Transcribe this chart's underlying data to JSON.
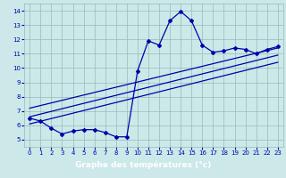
{
  "xlabel": "Graphe des températures (°c)",
  "bg_color": "#cce8e8",
  "line_color": "#0000aa",
  "grid_color": "#99bbbb",
  "x_data": [
    0,
    1,
    2,
    3,
    4,
    5,
    6,
    7,
    8,
    9,
    10,
    11,
    12,
    13,
    14,
    15,
    16,
    17,
    18,
    19,
    20,
    21,
    22,
    23
  ],
  "y_data": [
    6.5,
    6.3,
    5.8,
    5.4,
    5.6,
    5.7,
    5.7,
    5.5,
    5.2,
    5.2,
    9.8,
    11.9,
    11.6,
    13.3,
    13.95,
    13.3,
    11.6,
    11.1,
    11.2,
    11.4,
    11.3,
    11.0,
    11.3,
    11.5
  ],
  "ylim": [
    4.5,
    14.5
  ],
  "xlim": [
    -0.5,
    23.5
  ],
  "yticks": [
    5,
    6,
    7,
    8,
    9,
    10,
    11,
    12,
    13,
    14
  ],
  "xticks": [
    0,
    1,
    2,
    3,
    4,
    5,
    6,
    7,
    8,
    9,
    10,
    11,
    12,
    13,
    14,
    15,
    16,
    17,
    18,
    19,
    20,
    21,
    22,
    23
  ],
  "trend1_x": [
    0,
    23
  ],
  "trend1_y": [
    6.1,
    10.4
  ],
  "trend2_x": [
    0,
    23
  ],
  "trend2_y": [
    6.6,
    10.9
  ],
  "trend3_x": [
    0,
    23
  ],
  "trend3_y": [
    7.2,
    11.4
  ],
  "label_bar_color": "#0000aa",
  "label_text_color": "#ffffff",
  "label_fontsize": 6.5
}
